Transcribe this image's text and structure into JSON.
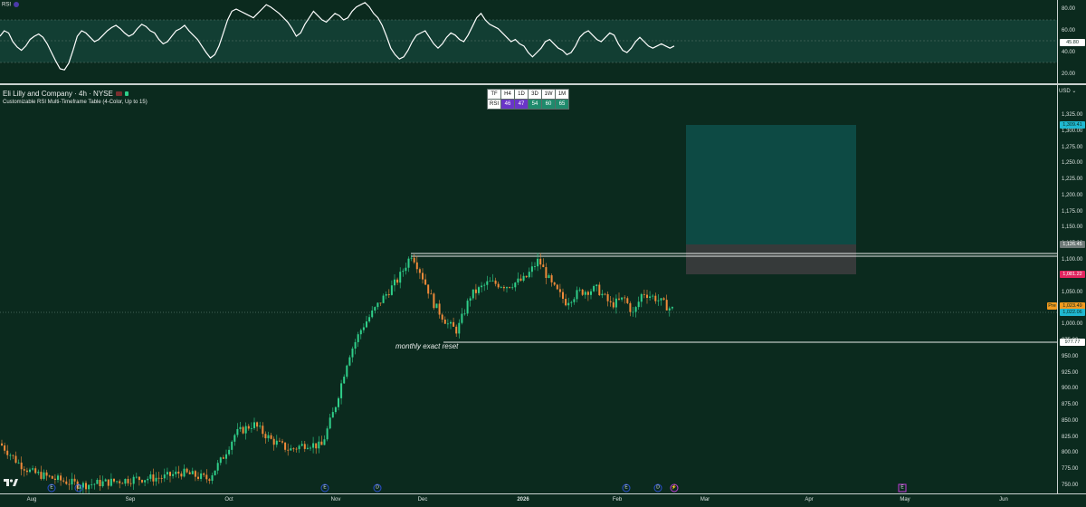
{
  "rsi_pane": {
    "label": "RSI",
    "axis_labels": [
      "80.00",
      "60.00",
      "40.00",
      "20.00"
    ],
    "current_value": "45.80",
    "colors": {
      "line": "#ffffff",
      "band": "#123e33",
      "overbought_fill": "#3c9a4c",
      "oversold_fill": "#7a2f2f"
    },
    "series": [
      55,
      60,
      58,
      50,
      45,
      42,
      46,
      52,
      55,
      57,
      54,
      48,
      40,
      32,
      25,
      24,
      30,
      42,
      55,
      60,
      58,
      54,
      50,
      52,
      56,
      60,
      63,
      65,
      62,
      58,
      55,
      57,
      62,
      66,
      64,
      60,
      58,
      52,
      48,
      50,
      55,
      60,
      62,
      65,
      60,
      56,
      52,
      46,
      40,
      35,
      38,
      46,
      58,
      70,
      78,
      80,
      78,
      76,
      74,
      72,
      76,
      80,
      84,
      82,
      79,
      76,
      72,
      68,
      62,
      55,
      58,
      66,
      72,
      78,
      74,
      70,
      68,
      72,
      76,
      74,
      70,
      72,
      78,
      82,
      84,
      86,
      82,
      76,
      72,
      65,
      55,
      44,
      38,
      34,
      36,
      42,
      50,
      56,
      58,
      60,
      54,
      48,
      44,
      48,
      54,
      58,
      56,
      52,
      50,
      56,
      64,
      72,
      76,
      70,
      66,
      64,
      62,
      58,
      54,
      50,
      52,
      48,
      46,
      40,
      36,
      40,
      44,
      50,
      52,
      48,
      44,
      42,
      38,
      40,
      46,
      54,
      58,
      60,
      56,
      52,
      50,
      54,
      58,
      56,
      48,
      42,
      40,
      44,
      50,
      54,
      50,
      46,
      44,
      46,
      48,
      46,
      44,
      46
    ]
  },
  "legend": {
    "title": "Eli Lilly and Company · 4h · NYSE",
    "indicator": "Customizable RSI Multi-Timeframe Table (4-Color, Up to 15)"
  },
  "mtf_table": {
    "header": [
      "TF",
      "H4",
      "1D",
      "3D",
      "1W",
      "1M"
    ],
    "row_label": "RSI",
    "values": [
      "46",
      "47",
      "54",
      "60",
      "65"
    ],
    "value_colors": [
      "#6a35c8",
      "#6a35c8",
      "#1f8a6c",
      "#1f8a6c",
      "#1f8a6c"
    ]
  },
  "price_axis": {
    "currency": "USD",
    "ticks": [
      "1,325.00",
      "1,300.00",
      "1,275.00",
      "1,250.00",
      "1,225.00",
      "1,200.00",
      "1,175.00",
      "1,150.00",
      "1,125.00",
      "1,100.00",
      "1,075.00",
      "1,050.00",
      "1,025.00",
      "1,000.00",
      "975.00",
      "950.00",
      "925.00",
      "900.00",
      "875.00",
      "850.00",
      "825.00",
      "800.00",
      "775.00",
      "750.00"
    ],
    "tags": [
      {
        "text": "1,309.41",
        "bg": "#1fb8d0",
        "fg": "#0b2a1e"
      },
      {
        "text": "1,126.45",
        "bg": "#6e7a78",
        "fg": "#ffffff"
      },
      {
        "text": "1,081.22",
        "bg": "#e0245e",
        "fg": "#ffffff"
      },
      {
        "text": "1,023.49",
        "bg": "#f19a1f",
        "fg": "#0b2a1e",
        "prefix": "Pre"
      },
      {
        "text": "1,022.06",
        "bg": "#1fb8d0",
        "fg": "#0b2a1e"
      },
      {
        "text": "977.77",
        "bg": "#ffffff",
        "fg": "#0b2a1e"
      }
    ]
  },
  "annotation": "monthly exact reset",
  "time_axis": [
    "Aug",
    "Sep",
    "Oct",
    "Nov",
    "Dec",
    "2026",
    "Feb",
    "Mar",
    "Apr",
    "May",
    "Jun"
  ],
  "colors": {
    "background": "#0b2a1e",
    "up_candle": "#2fcf8a",
    "down_candle": "#f08a3a",
    "target_zone": "#0d4a44",
    "stop_zone": "#3a3a3a",
    "resistance_line": "#e8ecea"
  },
  "events": [
    {
      "type": "E",
      "color": "#2a4fd0"
    },
    {
      "type": "D",
      "color": "#2a4fd0"
    },
    {
      "type": "E",
      "color": "#2a4fd0"
    },
    {
      "type": "D",
      "color": "#2a4fd0"
    },
    {
      "type": "E",
      "color": "#2a4fd0"
    },
    {
      "type": "D",
      "color": "#2a4fd0"
    },
    {
      "type": "E",
      "color": "#2a4fd0"
    },
    {
      "type": "D",
      "color": "#2a4fd0"
    },
    {
      "type": "⚡",
      "color": "#c23bd8"
    },
    {
      "type": "E",
      "color": "#c23bd8"
    }
  ]
}
